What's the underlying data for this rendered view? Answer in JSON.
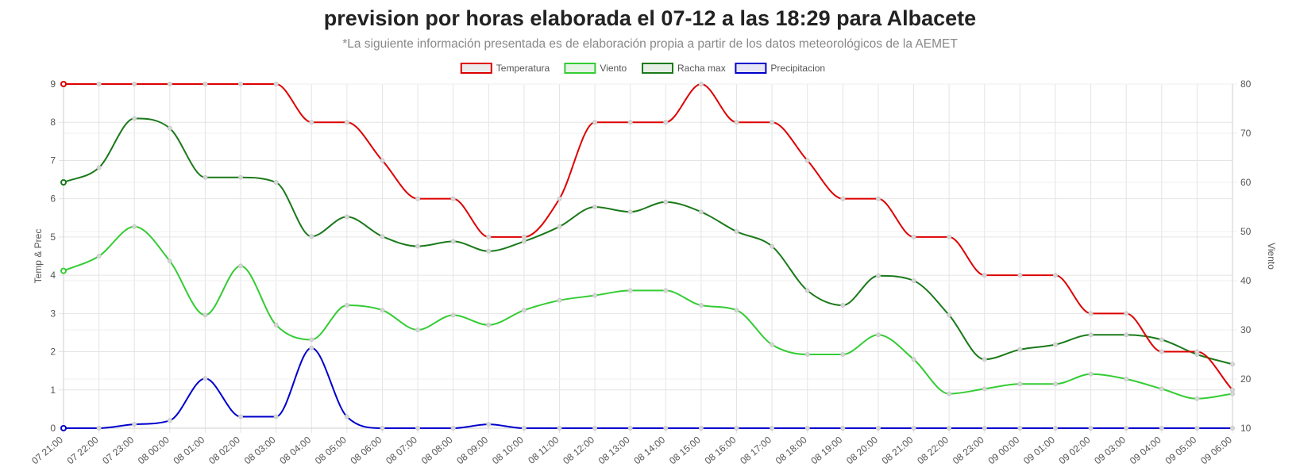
{
  "header": {
    "title": "prevision por horas elaborada el 07-12 a las 18:29 para Albacete",
    "subtitle": "*La siguiente información presentada es de elaboración propia a partir de los datos meteorológicos de la AEMET"
  },
  "chart_data": {
    "type": "line",
    "title": "prevision por horas elaborada el 07-12 a las 18:29 para Albacete",
    "subtitle": "*La siguiente información presentada es de elaboración propia a partir de los datos meteorológicos de la AEMET",
    "x": [
      "07 21:00",
      "07 22:00",
      "07 23:00",
      "08 00:00",
      "08 01:00",
      "08 02:00",
      "08 03:00",
      "08 04:00",
      "08 05:00",
      "08 06:00",
      "08 07:00",
      "08 08:00",
      "08 09:00",
      "08 10:00",
      "08 11:00",
      "08 12:00",
      "08 13:00",
      "08 14:00",
      "08 15:00",
      "08 16:00",
      "08 17:00",
      "08 18:00",
      "08 19:00",
      "08 20:00",
      "08 21:00",
      "08 22:00",
      "08 23:00",
      "09 00:00",
      "09 01:00",
      "09 02:00",
      "09 03:00",
      "09 04:00",
      "09 05:00",
      "09 06:00"
    ],
    "y_left": {
      "label": "Temp & Prec",
      "min": 0,
      "max": 9,
      "ticks": [
        "0",
        "1",
        "2",
        "3",
        "4",
        "5",
        "6",
        "7",
        "8",
        "9"
      ]
    },
    "y_right": {
      "label": "Viento",
      "min": 10,
      "max": 80,
      "ticks": [
        "10",
        "20",
        "30",
        "40",
        "50",
        "60",
        "70",
        "80"
      ]
    },
    "grid": true,
    "legend_position": "top",
    "series": [
      {
        "name": "Temperatura",
        "axis": "left",
        "color": "#dd0000",
        "fill": "#ececec",
        "values": [
          9,
          9,
          9,
          9,
          9,
          9,
          9,
          8,
          8,
          7,
          6,
          6,
          5,
          5,
          6,
          8,
          8,
          8,
          9,
          8,
          8,
          7,
          6,
          6,
          5,
          5,
          4,
          4,
          4,
          3,
          3,
          2,
          2,
          1
        ]
      },
      {
        "name": "Viento",
        "axis": "right",
        "color": "#33cc33",
        "fill": "#e6f4e6",
        "values": [
          42,
          45,
          51,
          44,
          33,
          43,
          31,
          28,
          35,
          34,
          30,
          33,
          31,
          34,
          36,
          37,
          38,
          38,
          35,
          34,
          27,
          25,
          25,
          29,
          24,
          17,
          18,
          19,
          19,
          21,
          20,
          18,
          16,
          17
        ]
      },
      {
        "name": "Racha max",
        "axis": "right",
        "color": "#1a7a1a",
        "fill": "#e6efe6",
        "values": [
          60,
          63,
          73,
          71,
          61,
          61,
          60,
          49,
          53,
          49,
          47,
          48,
          46,
          48,
          51,
          55,
          54,
          56,
          54,
          50,
          47,
          38,
          35,
          41,
          40,
          33,
          24,
          26,
          27,
          29,
          29,
          28,
          25,
          23
        ]
      },
      {
        "name": "Precipitacion",
        "axis": "left",
        "color": "#0000cc",
        "fill": "#e6e6f4",
        "values": [
          0,
          0,
          0.1,
          0.2,
          1.3,
          0.3,
          0.3,
          2.1,
          0.3,
          0,
          0,
          0,
          0.1,
          0,
          0,
          0,
          0,
          0,
          0,
          0,
          0,
          0,
          0,
          0,
          0,
          0,
          0,
          0,
          0,
          0,
          0,
          0,
          0,
          0
        ]
      }
    ]
  }
}
